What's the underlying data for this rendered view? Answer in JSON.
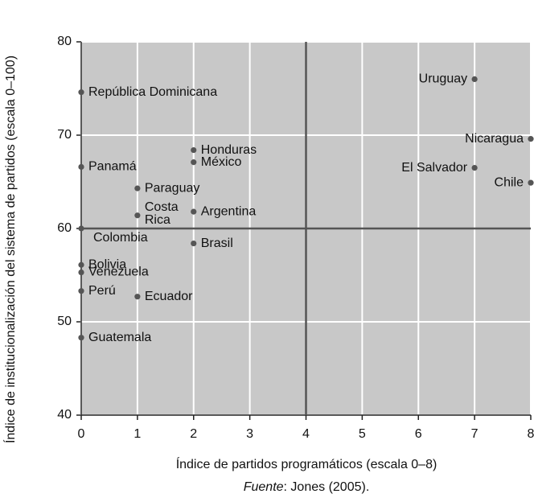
{
  "chart_data": {
    "type": "scatter",
    "x_label": "Índice de partidos programáticos (escala 0–8)",
    "y_label": "Índice de institucionalización del sistema de partidos (escala 0–100)",
    "source": {
      "label": "Fuente",
      "text": ": Jones (2005)."
    },
    "xlim": [
      0,
      8
    ],
    "ylim": [
      40,
      80
    ],
    "xticks": [
      0,
      1,
      2,
      3,
      4,
      5,
      6,
      7,
      8
    ],
    "yticks": [
      40,
      50,
      60,
      70,
      80
    ],
    "grid": true,
    "color": "#555555",
    "reference_lines": {
      "x": 4,
      "y": 60
    },
    "points": [
      {
        "name": "República Dominicana",
        "x": 0,
        "y": 74.6
      },
      {
        "name": "Uruguay",
        "x": 7,
        "y": 76.0
      },
      {
        "name": "Nicaragua",
        "x": 8,
        "y": 69.6
      },
      {
        "name": "Honduras",
        "x": 2,
        "y": 68.4
      },
      {
        "name": "México",
        "x": 2,
        "y": 67.1
      },
      {
        "name": "Panamá",
        "x": 0,
        "y": 66.6
      },
      {
        "name": "El Salvador",
        "x": 7,
        "y": 66.5
      },
      {
        "name": "Chile",
        "x": 8,
        "y": 64.9
      },
      {
        "name": "Paraguay",
        "x": 1,
        "y": 64.3
      },
      {
        "name": "Costa Rica",
        "x": 1,
        "y": 61.4
      },
      {
        "name": "Argentina",
        "x": 2,
        "y": 61.8
      },
      {
        "name": "Colombia",
        "x": 0,
        "y": 60.0
      },
      {
        "name": "Brasil",
        "x": 2,
        "y": 58.4
      },
      {
        "name": "Bolivia",
        "x": 0,
        "y": 56.1
      },
      {
        "name": "Venezuela",
        "x": 0,
        "y": 55.3
      },
      {
        "name": "Perú",
        "x": 0,
        "y": 53.3
      },
      {
        "name": "Ecuador",
        "x": 1,
        "y": 52.7
      },
      {
        "name": "Guatemala",
        "x": 0,
        "y": 48.3
      }
    ]
  }
}
